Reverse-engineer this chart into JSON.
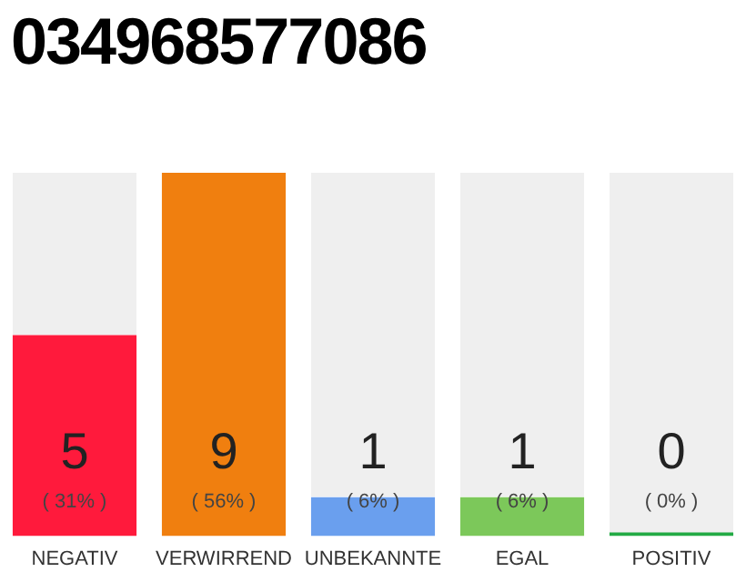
{
  "chart_data": {
    "type": "bar",
    "title": "034968577086",
    "categories": [
      "NEGATIV",
      "VERWIRREND",
      "UNBEKANNTE",
      "EGAL",
      "POSITIV"
    ],
    "values": [
      31,
      56,
      6,
      6,
      0
    ],
    "annotations": [
      "5",
      "9",
      "1",
      "1",
      "0"
    ],
    "colors": [
      "#ff1a3c",
      "#f07f0f",
      "#6a9fee",
      "#7cc85a",
      "#22aa44"
    ],
    "value_labels": [
      "( 31% )",
      "( 56% )",
      "( 6% )",
      "( 6% )",
      "( 0% )"
    ],
    "grid": false,
    "legend": false
  }
}
